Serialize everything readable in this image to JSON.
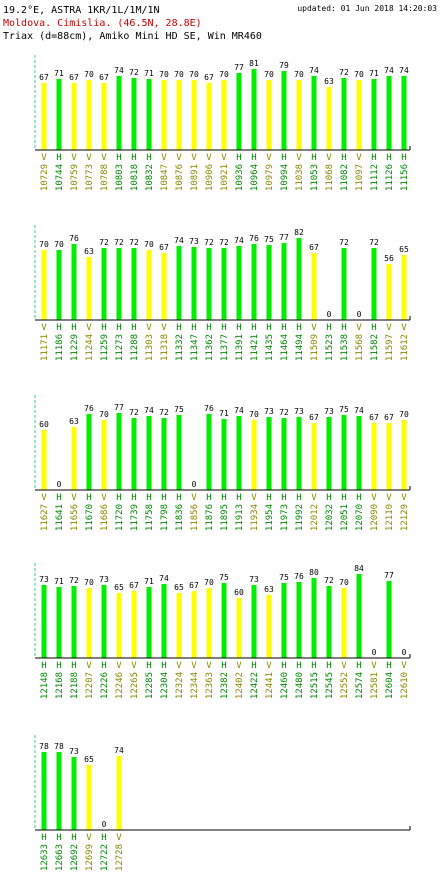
{
  "header": {
    "title": "19.2°E, ASTRA 1KR/1L/1M/1N",
    "updated": "updated: 01 Jun 2018 14:20:03",
    "location": "Moldova. Cimislia.  (46.5N, 28.8E)",
    "equipment": "Triax (d=88cm), Amiko Mini HD SE, Win MR460"
  },
  "chart_data": [
    {
      "type": "bar",
      "ylim": [
        0,
        100
      ],
      "pol_colors": {
        "H": "#00ee00",
        "V": "#ffff00"
      },
      "label_colors": {
        "H": "#008800",
        "V": "#888800"
      },
      "categories": [
        "10729",
        "10744",
        "10759",
        "10773",
        "10788",
        "10803",
        "10818",
        "10832",
        "10847",
        "10876",
        "10891",
        "10906",
        "10921",
        "10936",
        "10964",
        "10979",
        "10994",
        "11038",
        "11053",
        "11068",
        "11082",
        "11097",
        "11112",
        "11126",
        "11156"
      ],
      "pol": [
        "V",
        "H",
        "V",
        "V",
        "V",
        "H",
        "H",
        "H",
        "V",
        "V",
        "V",
        "V",
        "V",
        "H",
        "H",
        "V",
        "H",
        "V",
        "H",
        "V",
        "H",
        "V",
        "H",
        "H",
        "H"
      ],
      "values": [
        67,
        71,
        67,
        70,
        67,
        74,
        72,
        71,
        70,
        70,
        70,
        67,
        70,
        77,
        81,
        70,
        79,
        70,
        74,
        63,
        72,
        70,
        71,
        74,
        74
      ]
    },
    {
      "type": "bar",
      "ylim": [
        0,
        100
      ],
      "pol_colors": {
        "H": "#00ee00",
        "V": "#ffff00"
      },
      "label_colors": {
        "H": "#008800",
        "V": "#888800"
      },
      "categories": [
        "11171",
        "11186",
        "11229",
        "11244",
        "11259",
        "11273",
        "11288",
        "11303",
        "11318",
        "11332",
        "11347",
        "11362",
        "11377",
        "11391",
        "11421",
        "11435",
        "11464",
        "11494",
        "11509",
        "11523",
        "11538",
        "11568",
        "11582",
        "11597",
        "11612"
      ],
      "pol": [
        "V",
        "H",
        "H",
        "V",
        "H",
        "H",
        "H",
        "V",
        "V",
        "H",
        "H",
        "H",
        "H",
        "H",
        "H",
        "H",
        "H",
        "H",
        "V",
        "H",
        "H",
        "V",
        "H",
        "V",
        "V"
      ],
      "values": [
        70,
        70,
        76,
        63,
        72,
        72,
        72,
        70,
        67,
        74,
        73,
        72,
        72,
        74,
        76,
        75,
        77,
        82,
        67,
        0,
        72,
        0,
        72,
        56,
        65
      ]
    },
    {
      "type": "bar",
      "ylim": [
        0,
        100
      ],
      "pol_colors": {
        "H": "#00ee00",
        "V": "#ffff00"
      },
      "label_colors": {
        "H": "#008800",
        "V": "#888800"
      },
      "categories": [
        "11627",
        "11641",
        "11656",
        "11670",
        "11686",
        "11720",
        "11739",
        "11758",
        "11798",
        "11836",
        "11856",
        "11876",
        "11895",
        "11913",
        "11934",
        "11954",
        "11973",
        "11992",
        "12012",
        "12032",
        "12051",
        "12070",
        "12090",
        "12110",
        "12129"
      ],
      "pol": [
        "V",
        "H",
        "V",
        "H",
        "V",
        "H",
        "H",
        "H",
        "H",
        "H",
        "V",
        "H",
        "H",
        "H",
        "V",
        "H",
        "H",
        "H",
        "V",
        "H",
        "H",
        "H",
        "V",
        "V",
        "V"
      ],
      "values": [
        60,
        0,
        63,
        76,
        70,
        77,
        72,
        74,
        72,
        75,
        0,
        76,
        71,
        74,
        70,
        73,
        72,
        73,
        67,
        73,
        75,
        74,
        67,
        67,
        70
      ]
    },
    {
      "type": "bar",
      "ylim": [
        0,
        100
      ],
      "pol_colors": {
        "H": "#00ee00",
        "V": "#ffff00"
      },
      "label_colors": {
        "H": "#008800",
        "V": "#888800"
      },
      "categories": [
        "12148",
        "12168",
        "12188",
        "12207",
        "12226",
        "12246",
        "12265",
        "12285",
        "12304",
        "12324",
        "12344",
        "12363",
        "12382",
        "12402",
        "12422",
        "12441",
        "12460",
        "12480",
        "12515",
        "12545",
        "12552",
        "12574",
        "12581",
        "12604",
        "12610"
      ],
      "pol": [
        "H",
        "H",
        "H",
        "V",
        "H",
        "V",
        "V",
        "H",
        "H",
        "V",
        "V",
        "V",
        "H",
        "V",
        "H",
        "V",
        "H",
        "H",
        "H",
        "H",
        "V",
        "H",
        "V",
        "H",
        "V"
      ],
      "values": [
        73,
        71,
        72,
        70,
        73,
        65,
        67,
        71,
        74,
        65,
        67,
        70,
        75,
        60,
        73,
        63,
        75,
        76,
        80,
        72,
        70,
        84,
        0,
        77,
        0
      ]
    },
    {
      "type": "bar",
      "ylim": [
        0,
        100
      ],
      "pol_colors": {
        "H": "#00ee00",
        "V": "#ffff00"
      },
      "label_colors": {
        "H": "#008800",
        "V": "#888800"
      },
      "categories": [
        "12633",
        "12663",
        "12692",
        "12699",
        "12722",
        "12728"
      ],
      "pol": [
        "H",
        "H",
        "H",
        "V",
        "H",
        "V"
      ],
      "values": [
        78,
        78,
        73,
        65,
        0,
        74
      ]
    }
  ]
}
